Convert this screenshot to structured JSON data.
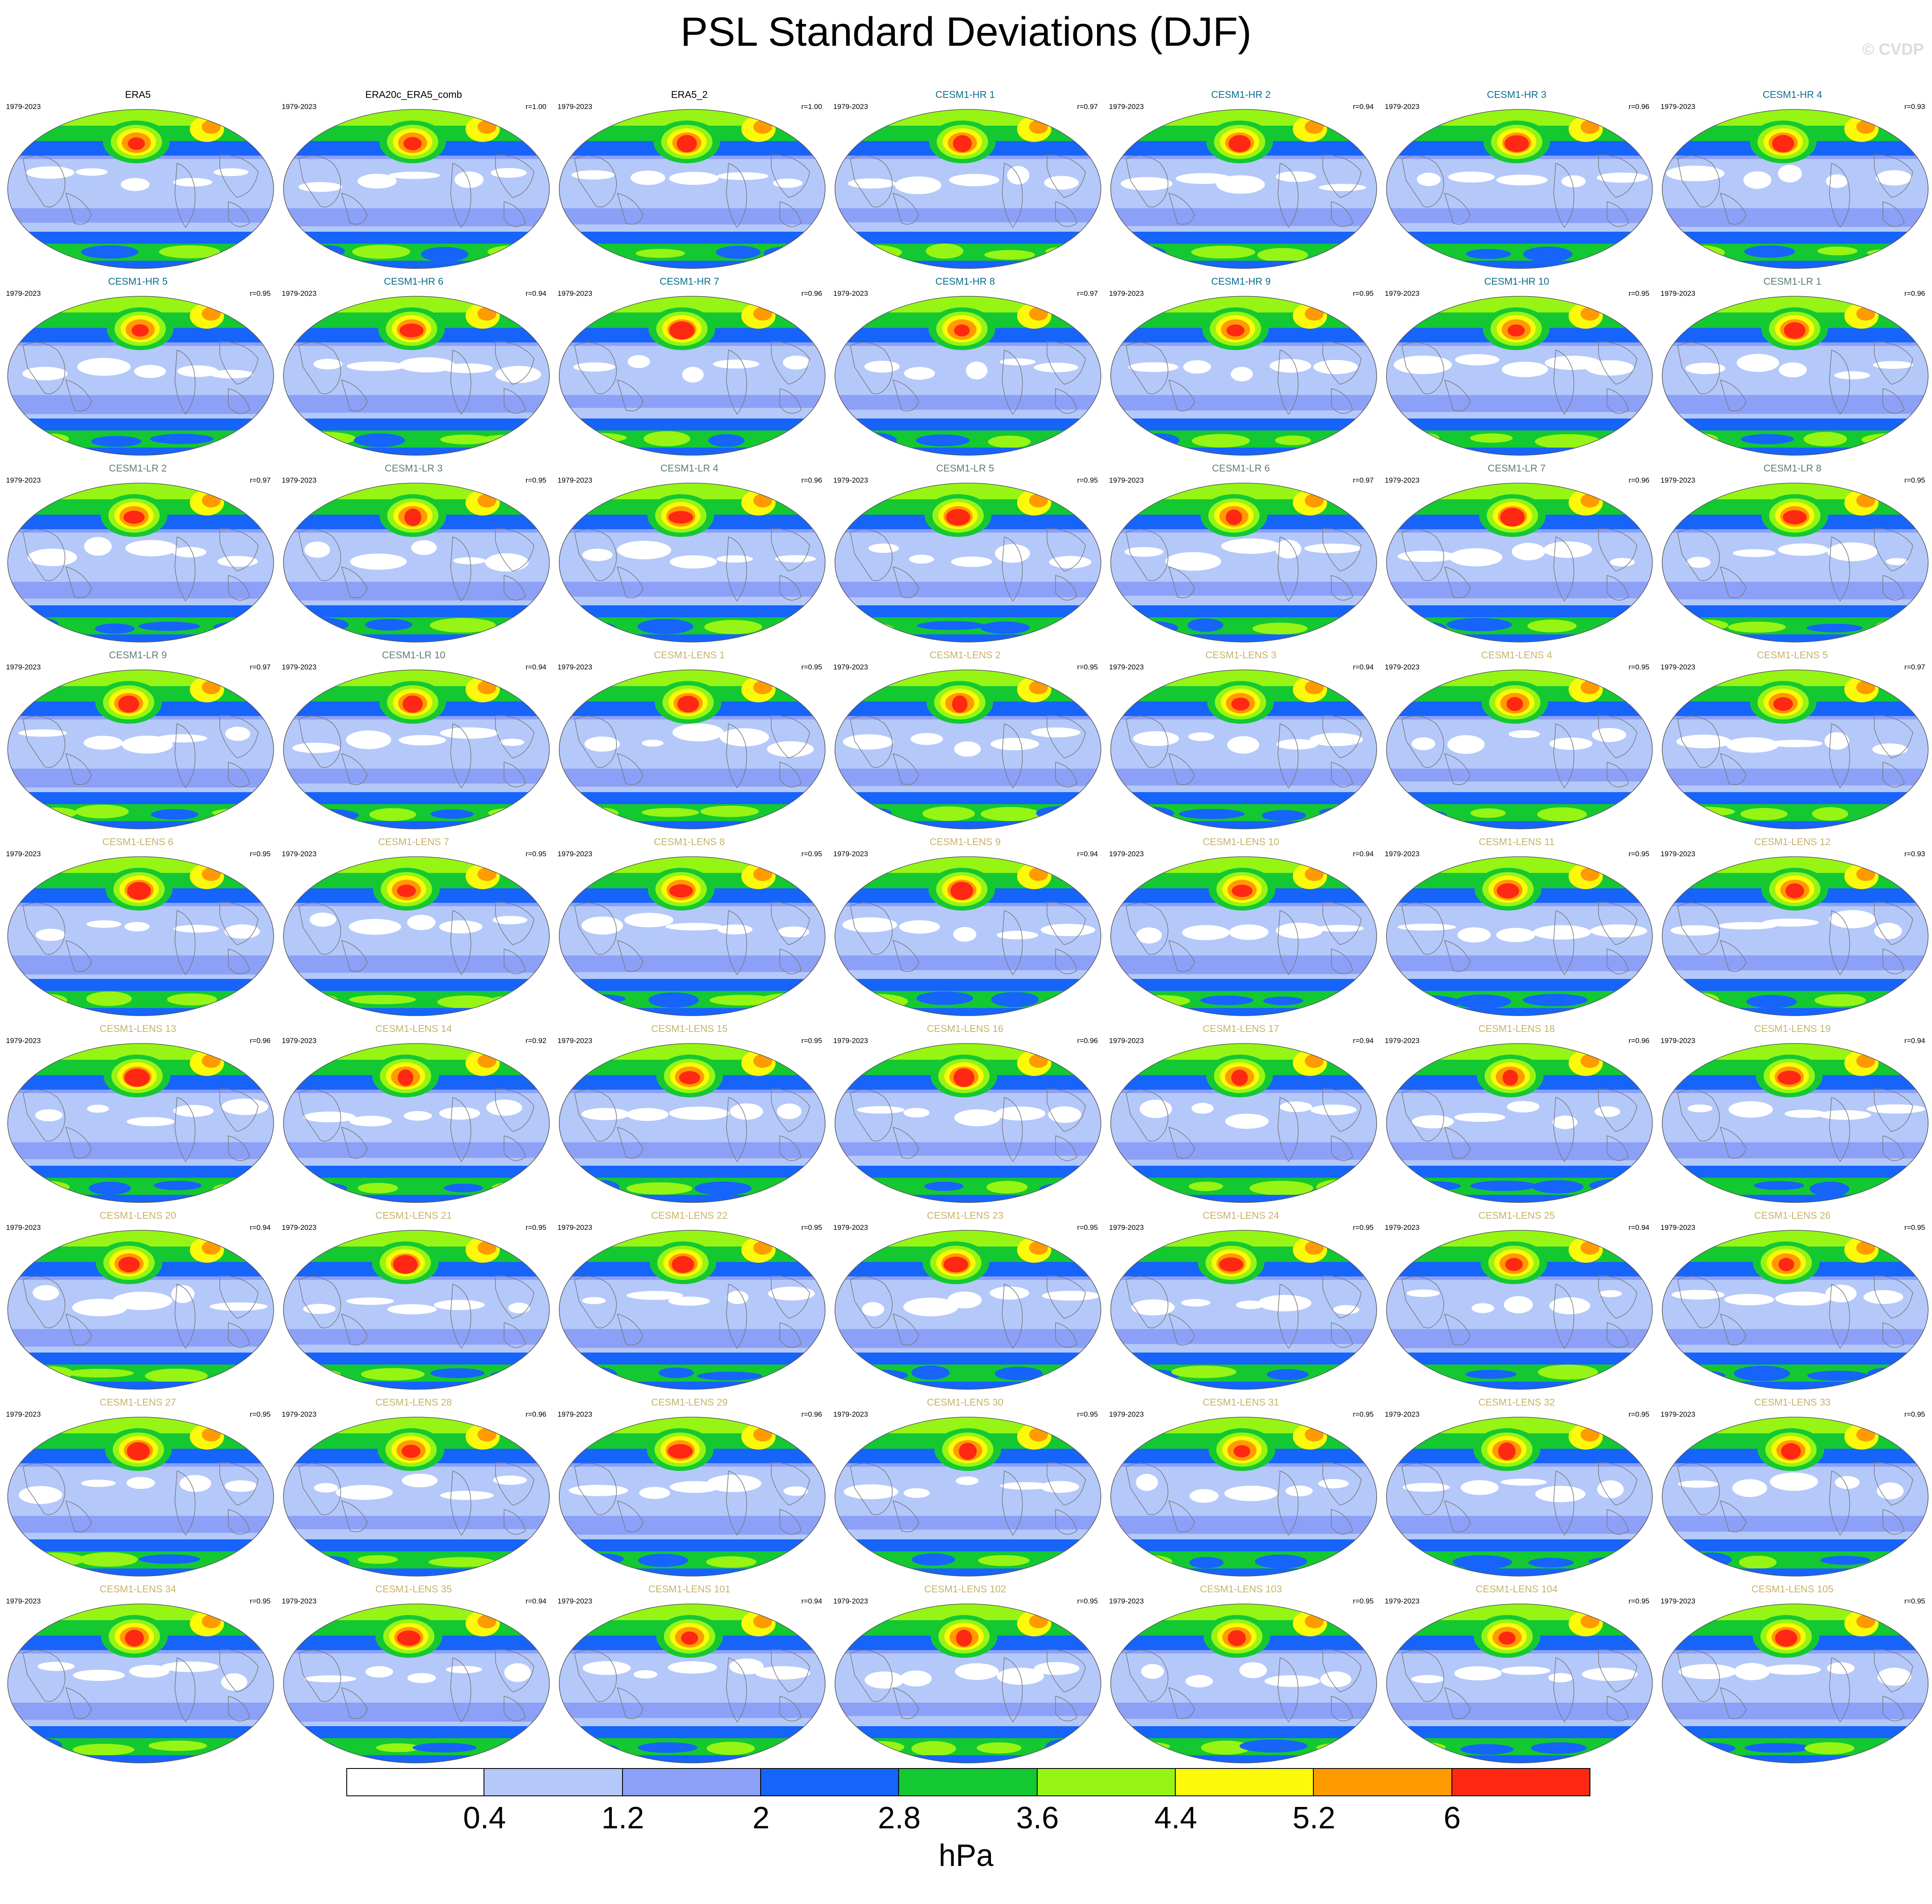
{
  "figure": {
    "title": "PSL Standard Deviations (DJF)",
    "copyright": "© CVDP"
  },
  "colors": {
    "obs_title": "#000000",
    "cesm1_hr_title": "#0b6e8f",
    "cesm1_lr_title": "#5e7f72",
    "cesm1_lens_title": "#c8b26a",
    "coastline": "#7a7a7a",
    "map_border": "#555555"
  },
  "colorbar": {
    "levels": [
      "0.4",
      "1.2",
      "2",
      "2.8",
      "3.6",
      "4.4",
      "5.2",
      "6"
    ],
    "colors": [
      "#ffffff",
      "#b4c8fa",
      "#8ca0f8",
      "#1664fa",
      "#14c832",
      "#96f514",
      "#fafa0a",
      "#ff9a00",
      "#ff2812"
    ],
    "units": "hPa"
  },
  "panels": [
    {
      "name": "ERA5",
      "years": "1979-2023",
      "r": "",
      "group": "obs"
    },
    {
      "name": "ERA20c_ERA5_comb",
      "years": "1979-2023",
      "r": "r=1.00",
      "group": "obs"
    },
    {
      "name": "ERA5_2",
      "years": "1979-2023",
      "r": "r=1.00",
      "group": "obs"
    },
    {
      "name": "CESM1-HR 1",
      "years": "1979-2023",
      "r": "r=0.97",
      "group": "hr"
    },
    {
      "name": "CESM1-HR 2",
      "years": "1979-2023",
      "r": "r=0.94",
      "group": "hr"
    },
    {
      "name": "CESM1-HR 3",
      "years": "1979-2023",
      "r": "r=0.96",
      "group": "hr"
    },
    {
      "name": "CESM1-HR 4",
      "years": "1979-2023",
      "r": "r=0.93",
      "group": "hr"
    },
    {
      "name": "CESM1-HR 5",
      "years": "1979-2023",
      "r": "r=0.95",
      "group": "hr"
    },
    {
      "name": "CESM1-HR 6",
      "years": "1979-2023",
      "r": "r=0.94",
      "group": "hr"
    },
    {
      "name": "CESM1-HR 7",
      "years": "1979-2023",
      "r": "r=0.96",
      "group": "hr"
    },
    {
      "name": "CESM1-HR 8",
      "years": "1979-2023",
      "r": "r=0.97",
      "group": "hr"
    },
    {
      "name": "CESM1-HR 9",
      "years": "1979-2023",
      "r": "r=0.95",
      "group": "hr"
    },
    {
      "name": "CESM1-HR 10",
      "years": "1979-2023",
      "r": "r=0.95",
      "group": "hr"
    },
    {
      "name": "CESM1-LR 1",
      "years": "1979-2023",
      "r": "r=0.96",
      "group": "lr"
    },
    {
      "name": "CESM1-LR 2",
      "years": "1979-2023",
      "r": "r=0.97",
      "group": "lr"
    },
    {
      "name": "CESM1-LR 3",
      "years": "1979-2023",
      "r": "r=0.95",
      "group": "lr"
    },
    {
      "name": "CESM1-LR 4",
      "years": "1979-2023",
      "r": "r=0.96",
      "group": "lr"
    },
    {
      "name": "CESM1-LR 5",
      "years": "1979-2023",
      "r": "r=0.95",
      "group": "lr"
    },
    {
      "name": "CESM1-LR 6",
      "years": "1979-2023",
      "r": "r=0.97",
      "group": "lr"
    },
    {
      "name": "CESM1-LR 7",
      "years": "1979-2023",
      "r": "r=0.96",
      "group": "lr"
    },
    {
      "name": "CESM1-LR 8",
      "years": "1979-2023",
      "r": "r=0.95",
      "group": "lr"
    },
    {
      "name": "CESM1-LR 9",
      "years": "1979-2023",
      "r": "r=0.97",
      "group": "lr"
    },
    {
      "name": "CESM1-LR 10",
      "years": "1979-2023",
      "r": "r=0.94",
      "group": "lr"
    },
    {
      "name": "CESM1-LENS 1",
      "years": "1979-2023",
      "r": "r=0.95",
      "group": "lens"
    },
    {
      "name": "CESM1-LENS 2",
      "years": "1979-2023",
      "r": "r=0.95",
      "group": "lens"
    },
    {
      "name": "CESM1-LENS 3",
      "years": "1979-2023",
      "r": "r=0.94",
      "group": "lens"
    },
    {
      "name": "CESM1-LENS 4",
      "years": "1979-2023",
      "r": "r=0.95",
      "group": "lens"
    },
    {
      "name": "CESM1-LENS 5",
      "years": "1979-2023",
      "r": "r=0.97",
      "group": "lens"
    },
    {
      "name": "CESM1-LENS 6",
      "years": "1979-2023",
      "r": "r=0.95",
      "group": "lens"
    },
    {
      "name": "CESM1-LENS 7",
      "years": "1979-2023",
      "r": "r=0.95",
      "group": "lens"
    },
    {
      "name": "CESM1-LENS 8",
      "years": "1979-2023",
      "r": "r=0.95",
      "group": "lens"
    },
    {
      "name": "CESM1-LENS 9",
      "years": "1979-2023",
      "r": "r=0.94",
      "group": "lens"
    },
    {
      "name": "CESM1-LENS 10",
      "years": "1979-2023",
      "r": "r=0.94",
      "group": "lens"
    },
    {
      "name": "CESM1-LENS 11",
      "years": "1979-2023",
      "r": "r=0.95",
      "group": "lens"
    },
    {
      "name": "CESM1-LENS 12",
      "years": "1979-2023",
      "r": "r=0.93",
      "group": "lens"
    },
    {
      "name": "CESM1-LENS 13",
      "years": "1979-2023",
      "r": "r=0.96",
      "group": "lens"
    },
    {
      "name": "CESM1-LENS 14",
      "years": "1979-2023",
      "r": "r=0.92",
      "group": "lens"
    },
    {
      "name": "CESM1-LENS 15",
      "years": "1979-2023",
      "r": "r=0.95",
      "group": "lens"
    },
    {
      "name": "CESM1-LENS 16",
      "years": "1979-2023",
      "r": "r=0.96",
      "group": "lens"
    },
    {
      "name": "CESM1-LENS 17",
      "years": "1979-2023",
      "r": "r=0.94",
      "group": "lens"
    },
    {
      "name": "CESM1-LENS 18",
      "years": "1979-2023",
      "r": "r=0.96",
      "group": "lens"
    },
    {
      "name": "CESM1-LENS 19",
      "years": "1979-2023",
      "r": "r=0.94",
      "group": "lens"
    },
    {
      "name": "CESM1-LENS 20",
      "years": "1979-2023",
      "r": "r=0.94",
      "group": "lens"
    },
    {
      "name": "CESM1-LENS 21",
      "years": "1979-2023",
      "r": "r=0.95",
      "group": "lens"
    },
    {
      "name": "CESM1-LENS 22",
      "years": "1979-2023",
      "r": "r=0.95",
      "group": "lens"
    },
    {
      "name": "CESM1-LENS 23",
      "years": "1979-2023",
      "r": "r=0.95",
      "group": "lens"
    },
    {
      "name": "CESM1-LENS 24",
      "years": "1979-2023",
      "r": "r=0.95",
      "group": "lens"
    },
    {
      "name": "CESM1-LENS 25",
      "years": "1979-2023",
      "r": "r=0.94",
      "group": "lens"
    },
    {
      "name": "CESM1-LENS 26",
      "years": "1979-2023",
      "r": "r=0.95",
      "group": "lens"
    },
    {
      "name": "CESM1-LENS 27",
      "years": "1979-2023",
      "r": "r=0.95",
      "group": "lens"
    },
    {
      "name": "CESM1-LENS 28",
      "years": "1979-2023",
      "r": "r=0.96",
      "group": "lens"
    },
    {
      "name": "CESM1-LENS 29",
      "years": "1979-2023",
      "r": "r=0.96",
      "group": "lens"
    },
    {
      "name": "CESM1-LENS 30",
      "years": "1979-2023",
      "r": "r=0.95",
      "group": "lens"
    },
    {
      "name": "CESM1-LENS 31",
      "years": "1979-2023",
      "r": "r=0.95",
      "group": "lens"
    },
    {
      "name": "CESM1-LENS 32",
      "years": "1979-2023",
      "r": "r=0.95",
      "group": "lens"
    },
    {
      "name": "CESM1-LENS 33",
      "years": "1979-2023",
      "r": "r=0.95",
      "group": "lens"
    },
    {
      "name": "CESM1-LENS 34",
      "years": "1979-2023",
      "r": "r=0.95",
      "group": "lens"
    },
    {
      "name": "CESM1-LENS 35",
      "years": "1979-2023",
      "r": "r=0.94",
      "group": "lens"
    },
    {
      "name": "CESM1-LENS 101",
      "years": "1979-2023",
      "r": "r=0.94",
      "group": "lens"
    },
    {
      "name": "CESM1-LENS 102",
      "years": "1979-2023",
      "r": "r=0.95",
      "group": "lens"
    },
    {
      "name": "CESM1-LENS 103",
      "years": "1979-2023",
      "r": "r=0.95",
      "group": "lens"
    },
    {
      "name": "CESM1-LENS 104",
      "years": "1979-2023",
      "r": "r=0.95",
      "group": "lens"
    },
    {
      "name": "CESM1-LENS 105",
      "years": "1979-2023",
      "r": "r=0.95",
      "group": "lens"
    }
  ]
}
